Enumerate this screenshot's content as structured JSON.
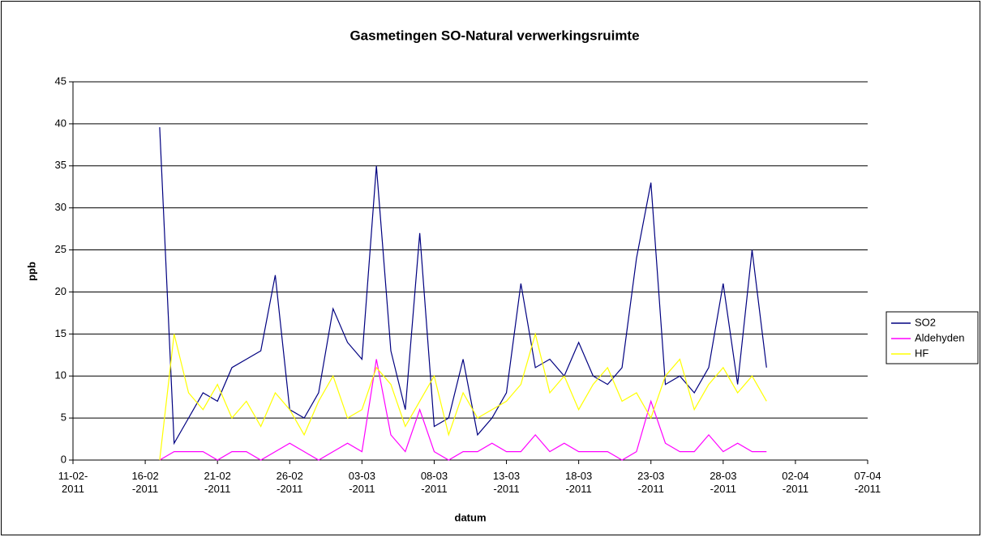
{
  "chart_data": {
    "type": "line",
    "title": "Gasmetingen SO-Natural verwerkingsruimte",
    "x_label": "datum",
    "y_label": "ppb",
    "x": [
      "17-02-2011",
      "18-02-2011",
      "19-02-2011",
      "20-02-2011",
      "21-02-2011",
      "22-02-2011",
      "23-02-2011",
      "24-02-2011",
      "25-02-2011",
      "26-02-2011",
      "27-02-2011",
      "28-02-2011",
      "01-03-2011",
      "02-03-2011",
      "03-03-2011",
      "04-03-2011",
      "05-03-2011",
      "06-03-2011",
      "07-03-2011",
      "08-03-2011",
      "09-03-2011",
      "10-03-2011",
      "11-03-2011",
      "12-03-2011",
      "13-03-2011",
      "14-03-2011",
      "15-03-2011",
      "16-03-2011",
      "17-03-2011",
      "18-03-2011",
      "19-03-2011",
      "20-03-2011",
      "21-03-2011",
      "22-03-2011",
      "23-03-2011",
      "24-03-2011",
      "25-03-2011",
      "26-03-2011",
      "27-03-2011",
      "28-03-2011",
      "29-03-2011",
      "30-03-2011",
      "31-03-2011"
    ],
    "series": [
      {
        "name": "SO2",
        "color": "#000080",
        "values": [
          39.6,
          2,
          5,
          8,
          7,
          11,
          12,
          13,
          22,
          6,
          5,
          8,
          18,
          14,
          12,
          35,
          13,
          6,
          27,
          4,
          5,
          12,
          3,
          5,
          8,
          21,
          11,
          12,
          10,
          14,
          10,
          9,
          11,
          24,
          33,
          9,
          10,
          8,
          11,
          21,
          9,
          25,
          11
        ]
      },
      {
        "name": "Aldehyden",
        "color": "#ff00ff",
        "values": [
          0,
          1,
          1,
          1,
          0,
          1,
          1,
          0,
          1,
          2,
          1,
          0,
          1,
          2,
          1,
          12,
          3,
          1,
          6,
          1,
          0,
          1,
          1,
          2,
          1,
          1,
          3,
          1,
          2,
          1,
          1,
          1,
          0,
          1,
          7,
          2,
          1,
          1,
          3,
          1,
          2,
          1,
          1
        ]
      },
      {
        "name": "HF",
        "color": "#ffff00",
        "values": [
          0,
          15,
          8,
          6,
          9,
          5,
          7,
          4,
          8,
          6,
          3,
          7,
          10,
          5,
          6,
          11,
          9,
          4,
          7,
          10,
          3,
          8,
          5,
          6,
          7,
          9,
          15,
          8,
          10,
          6,
          9,
          11,
          7,
          8,
          5,
          10,
          12,
          6,
          9,
          11,
          8,
          10,
          7
        ]
      }
    ],
    "xlim": [
      "11-02-2011",
      "07-04-2011"
    ],
    "xticks": [
      "11-02-2011",
      "16-02-2011",
      "21-02-2011",
      "26-02-2011",
      "03-03-2011",
      "08-03-2011",
      "13-03-2011",
      "18-03-2011",
      "23-03-2011",
      "28-03-2011",
      "02-04-2011",
      "07-04-2011"
    ],
    "ylim": [
      0,
      45
    ],
    "yticks": [
      0,
      5,
      10,
      15,
      20,
      25,
      30,
      35,
      40,
      45
    ],
    "grid": true,
    "legend": "right"
  }
}
